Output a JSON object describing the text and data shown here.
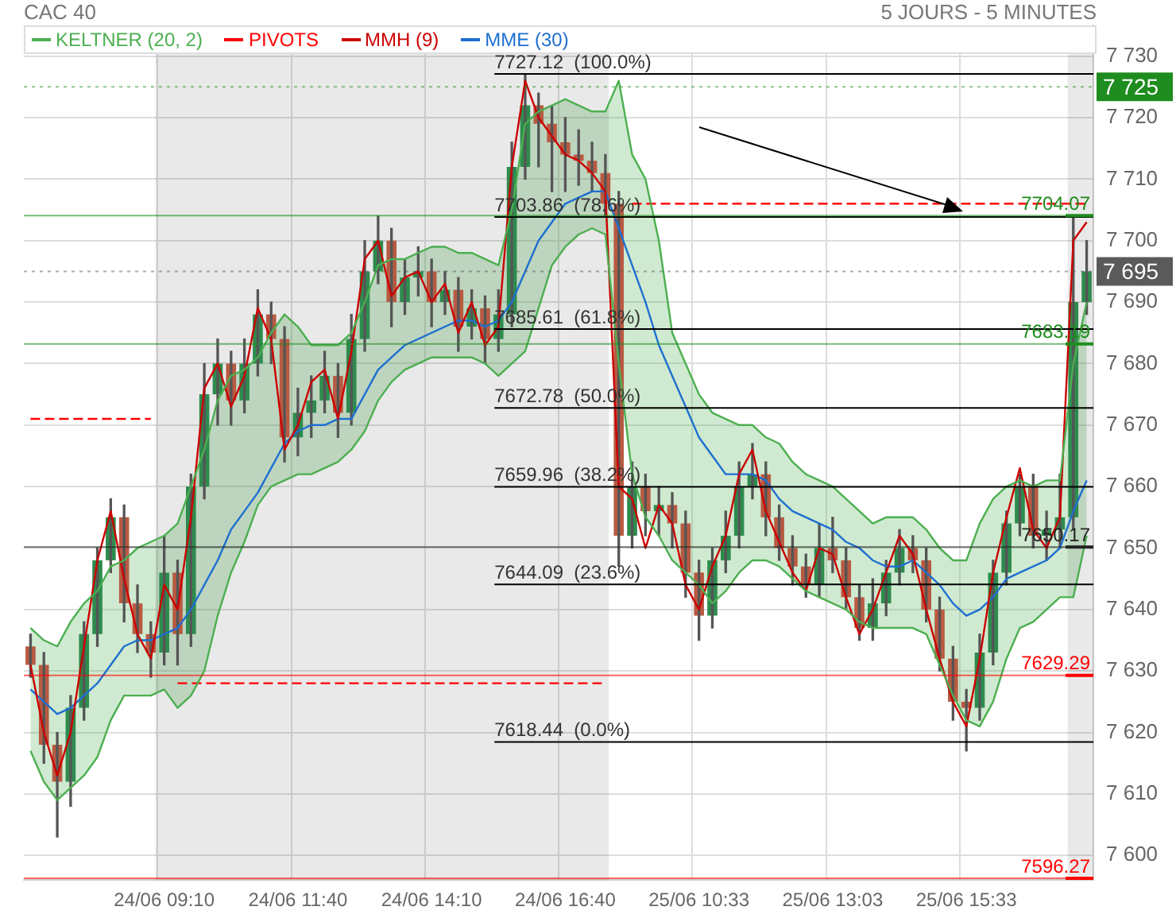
{
  "chart_data": {
    "type": "candlestick",
    "title": "CAC 40",
    "subtitle": "5 JOURS - 5 MINUTES",
    "categories": [
      null,
      null,
      null,
      null,
      null,
      null,
      null,
      null,
      null,
      null,
      "24/06 09:10",
      null,
      null,
      null,
      null,
      null,
      null,
      null,
      null,
      null,
      "24/06 11:40",
      null,
      null,
      null,
      null,
      null,
      null,
      null,
      null,
      null,
      "24/06 14:10",
      null,
      null,
      null,
      null,
      null,
      null,
      null,
      null,
      null,
      "24/06 16:40",
      null,
      null,
      null,
      null,
      null,
      null,
      null,
      null,
      null,
      "25/06 10:33",
      null,
      null,
      null,
      null,
      null,
      null,
      null,
      null,
      null,
      "25/06 13:03",
      null,
      null,
      null,
      null,
      null,
      null,
      null,
      null,
      null,
      "25/06 15:33",
      null,
      null,
      null,
      null,
      null,
      null,
      null,
      null,
      null
    ],
    "ohlc": [
      [
        7634,
        7636,
        7629,
        7631
      ],
      [
        7631,
        7633,
        7615,
        7618
      ],
      [
        7618,
        7620,
        7603,
        7612
      ],
      [
        7612,
        7626,
        7608,
        7624
      ],
      [
        7624,
        7638,
        7622,
        7636
      ],
      [
        7636,
        7650,
        7634,
        7648
      ],
      [
        7648,
        7658,
        7646,
        7655
      ],
      [
        7655,
        7657,
        7638,
        7641
      ],
      [
        7641,
        7644,
        7633,
        7636
      ],
      [
        7636,
        7638,
        7629,
        7633
      ],
      [
        7633,
        7652,
        7631,
        7646
      ],
      [
        7646,
        7648,
        7631,
        7636
      ],
      [
        7636,
        7662,
        7634,
        7660
      ],
      [
        7660,
        7680,
        7658,
        7675
      ],
      [
        7675,
        7684,
        7670,
        7680
      ],
      [
        7680,
        7682,
        7670,
        7674
      ],
      [
        7674,
        7684,
        7672,
        7680
      ],
      [
        7680,
        7692,
        7678,
        7688
      ],
      [
        7688,
        7690,
        7680,
        7684
      ],
      [
        7684,
        7686,
        7664,
        7668
      ],
      [
        7668,
        7676,
        7665,
        7672
      ],
      [
        7672,
        7678,
        7668,
        7674
      ],
      [
        7674,
        7682,
        7672,
        7678
      ],
      [
        7678,
        7680,
        7668,
        7672
      ],
      [
        7672,
        7688,
        7670,
        7684
      ],
      [
        7684,
        7700,
        7682,
        7695
      ],
      [
        7695,
        7704,
        7693,
        7700
      ],
      [
        7700,
        7702,
        7686,
        7690
      ],
      [
        7690,
        7697,
        7688,
        7694
      ],
      [
        7694,
        7699,
        7691,
        7695
      ],
      [
        7695,
        7697,
        7686,
        7690
      ],
      [
        7690,
        7695,
        7688,
        7692
      ],
      [
        7692,
        7694,
        7682,
        7686
      ],
      [
        7686,
        7692,
        7684,
        7689
      ],
      [
        7689,
        7691,
        7680,
        7684
      ],
      [
        7684,
        7692,
        7682,
        7688
      ],
      [
        7688,
        7716,
        7686,
        7712
      ],
      [
        7712,
        7727,
        7710,
        7722
      ],
      [
        7722,
        7724,
        7712,
        7719
      ],
      [
        7719,
        7722,
        7708,
        7716
      ],
      [
        7716,
        7720,
        7708,
        7714
      ],
      [
        7714,
        7718,
        7709,
        7713
      ],
      [
        7713,
        7716,
        7708,
        7711
      ],
      [
        7711,
        7714,
        7704,
        7706
      ],
      [
        7706,
        7708,
        7647,
        7652
      ],
      [
        7652,
        7664,
        7650,
        7660
      ],
      [
        7660,
        7662,
        7652,
        7656
      ],
      [
        7656,
        7660,
        7652,
        7657
      ],
      [
        7657,
        7659,
        7650,
        7654
      ],
      [
        7654,
        7656,
        7642,
        7646
      ],
      [
        7646,
        7648,
        7635,
        7639
      ],
      [
        7639,
        7650,
        7637,
        7648
      ],
      [
        7648,
        7656,
        7646,
        7652
      ],
      [
        7652,
        7664,
        7650,
        7660
      ],
      [
        7660,
        7667,
        7658,
        7662
      ],
      [
        7662,
        7664,
        7652,
        7655
      ],
      [
        7655,
        7657,
        7648,
        7650
      ],
      [
        7650,
        7652,
        7644,
        7647
      ],
      [
        7647,
        7649,
        7642,
        7644
      ],
      [
        7644,
        7654,
        7642,
        7650
      ],
      [
        7650,
        7655,
        7646,
        7648
      ],
      [
        7648,
        7650,
        7640,
        7642
      ],
      [
        7642,
        7644,
        7635,
        7637
      ],
      [
        7637,
        7645,
        7635,
        7641
      ],
      [
        7641,
        7648,
        7639,
        7646
      ],
      [
        7646,
        7653,
        7644,
        7650
      ],
      [
        7650,
        7652,
        7646,
        7648
      ],
      [
        7648,
        7650,
        7638,
        7640
      ],
      [
        7640,
        7642,
        7630,
        7632
      ],
      [
        7632,
        7634,
        7622,
        7625
      ],
      [
        7625,
        7627,
        7617,
        7624
      ],
      [
        7624,
        7636,
        7622,
        7633
      ],
      [
        7633,
        7648,
        7631,
        7646
      ],
      [
        7646,
        7656,
        7644,
        7654
      ],
      [
        7654,
        7662,
        7652,
        7660
      ],
      [
        7660,
        7662,
        7650,
        7652
      ],
      [
        7652,
        7656,
        7648,
        7653
      ],
      [
        7653,
        7662,
        7650,
        7655
      ],
      [
        7655,
        7704,
        7653,
        7690
      ],
      [
        7690,
        7700,
        7688,
        7695
      ]
    ],
    "series": [
      {
        "name": "KELTNER (20, 2)",
        "type": "area",
        "color": "#4caf50",
        "values": [
          7637,
          7635,
          7634,
          7638,
          7641,
          7643,
          7647,
          7648,
          7650,
          7651,
          7652,
          7654,
          7660,
          7666,
          7674,
          7678,
          7679,
          7681,
          7685,
          7688,
          7686,
          7683,
          7683,
          7683,
          7685,
          7690,
          7696,
          7697,
          7697,
          7698,
          7699,
          7699,
          7698,
          7698,
          7697,
          7696,
          7705,
          7719,
          7721,
          7722,
          7723,
          7722,
          7721,
          7721,
          7726,
          7714,
          7710,
          7700,
          7685,
          7680,
          7675,
          7672,
          7671,
          7670,
          7670,
          7668,
          7667,
          7664,
          7662,
          7661,
          7660,
          7658,
          7656,
          7654,
          7655,
          7655,
          7655,
          7653,
          7650,
          7648,
          7648,
          7654,
          7658,
          7660,
          7661,
          7660,
          7661,
          7661,
          7680,
          7690
        ]
      },
      {
        "type": "line",
        "color": "#4caf50",
        "values": [
          7617,
          7612,
          7609,
          7611,
          7613,
          7616,
          7622,
          7626,
          7626,
          7626,
          7627,
          7624,
          7626,
          7630,
          7639,
          7646,
          7651,
          7657,
          7660,
          7661,
          7662,
          7662,
          7663,
          7664,
          7666,
          7669,
          7674,
          7677,
          7679,
          7680,
          7681,
          7681,
          7681,
          7681,
          7680,
          7678,
          7680,
          7682,
          7689,
          7696,
          7699,
          7701,
          7702,
          7701,
          7680,
          7662,
          7655,
          7652,
          7648,
          7646,
          7644,
          7641,
          7643,
          7646,
          7648,
          7648,
          7647,
          7645,
          7643,
          7642,
          7641,
          7640,
          7638,
          7637,
          7637,
          7637,
          7637,
          7636,
          7631,
          7626,
          7622,
          7621,
          7625,
          7632,
          7637,
          7638,
          7640,
          7642,
          7642,
          7652
        ]
      },
      {
        "name": "PIVOTS",
        "type": "line",
        "color": "#ff0000",
        "line_style": "dashed",
        "values": [
          7671,
          7671,
          7671,
          7671,
          7671,
          7671,
          7671,
          7671,
          7671,
          7671,
          null,
          7628,
          7628,
          7628,
          7628,
          7628,
          7628,
          7628,
          7628,
          7628,
          7628,
          7628,
          7628,
          7628,
          7628,
          7628,
          7628,
          7628,
          7628,
          7628,
          7628,
          7628,
          7628,
          7628,
          7628,
          7628,
          7628,
          7628,
          7628,
          7628,
          7628,
          7628,
          7628,
          7628,
          null,
          7706,
          7706,
          7706,
          7706,
          7706,
          7706,
          7706,
          7706,
          7706,
          7706,
          7706,
          7706,
          7706,
          7706,
          7706,
          7706,
          7706,
          7706,
          7706,
          7706,
          7706,
          7706,
          7706,
          7706,
          7706,
          7706,
          7706,
          7706,
          7706,
          7706,
          7706,
          7706,
          7706,
          7706,
          7706
        ]
      },
      {
        "name": "MMH (9)",
        "type": "line",
        "color": "#cc0000",
        "values": [
          7631,
          7620,
          7613,
          7620,
          7634,
          7648,
          7656,
          7645,
          7636,
          7632,
          7644,
          7640,
          7655,
          7676,
          7680,
          7673,
          7678,
          7689,
          7684,
          7666,
          7670,
          7677,
          7679,
          7671,
          7682,
          7697,
          7700,
          7691,
          7694,
          7695,
          7690,
          7693,
          7685,
          7690,
          7683,
          7686,
          7712,
          7726,
          7720,
          7717,
          7714,
          7713,
          7711,
          7708,
          7660,
          7658,
          7650,
          7657,
          7654,
          7644,
          7640,
          7647,
          7652,
          7662,
          7666,
          7656,
          7651,
          7646,
          7643,
          7650,
          7649,
          7642,
          7636,
          7640,
          7646,
          7652,
          7649,
          7640,
          7632,
          7625,
          7621,
          7632,
          7646,
          7655,
          7663,
          7653,
          7650,
          7655,
          7700,
          7703
        ]
      },
      {
        "name": "MME (30)",
        "type": "line",
        "color": "#1e6fd0",
        "values": [
          7627,
          7625,
          7623,
          7624,
          7626,
          7628,
          7631,
          7634,
          7635,
          7635,
          7636,
          7637,
          7640,
          7644,
          7648,
          7653,
          7656,
          7659,
          7663,
          7667,
          7669,
          7670,
          7670,
          7671,
          7671,
          7675,
          7679,
          7681,
          7683,
          7684,
          7685,
          7686,
          7687,
          7687,
          7686,
          7687,
          7690,
          7695,
          7700,
          7703,
          7706,
          7707,
          7708,
          7708,
          7702,
          7696,
          7690,
          7683,
          7678,
          7673,
          7668,
          7665,
          7662,
          7662,
          7662,
          7661,
          7658,
          7656,
          7655,
          7654,
          7653,
          7651,
          7650,
          7648,
          7647,
          7647,
          7648,
          7646,
          7644,
          7641,
          7639,
          7640,
          7642,
          7645,
          7646,
          7647,
          7648,
          7650,
          7656,
          7661
        ]
      }
    ],
    "ylim": [
      7596,
      7735
    ],
    "yticks": [
      {
        "value": 7600,
        "label": "7 600"
      },
      {
        "value": 7610,
        "label": "7 610"
      },
      {
        "value": 7620,
        "label": "7 620"
      },
      {
        "value": 7630,
        "label": "7 630"
      },
      {
        "value": 7640,
        "label": "7 640"
      },
      {
        "value": 7650,
        "label": "7 650"
      },
      {
        "value": 7660,
        "label": "7 660"
      },
      {
        "value": 7670,
        "label": "7 670"
      },
      {
        "value": 7680,
        "label": "7 680"
      },
      {
        "value": 7690,
        "label": "7 690"
      },
      {
        "value": 7700,
        "label": "7 700"
      },
      {
        "value": 7710,
        "label": "7 710"
      },
      {
        "value": 7720,
        "label": "7 720"
      },
      {
        "value": 7730,
        "label": "7 730"
      }
    ],
    "ref_lines": [
      {
        "axis": "y",
        "value": 7727.12,
        "label": "7727.12  (100.0%)",
        "color": "#000000"
      },
      {
        "axis": "y",
        "value": 7703.86,
        "label": "7703.86  (78.6%)",
        "color": "#000000"
      },
      {
        "axis": "y",
        "value": 7685.61,
        "label": "7685.61  (61.8%)",
        "color": "#000000"
      },
      {
        "axis": "y",
        "value": 7672.78,
        "label": "7672.78  (50.0%)",
        "color": "#000000"
      },
      {
        "axis": "y",
        "value": 7659.96,
        "label": "7659.96  (38.2%)",
        "color": "#000000"
      },
      {
        "axis": "y",
        "value": 7644.09,
        "label": "7644.09  (23.6%)",
        "color": "#000000"
      },
      {
        "axis": "y",
        "value": 7618.44,
        "label": "7618.44  (0.0%)",
        "color": "#000000"
      },
      {
        "axis": "y",
        "value": 7704.07,
        "label": "7704.07",
        "color": "#1e8c1e",
        "line_style": "solid"
      },
      {
        "axis": "y",
        "value": 7683.19,
        "label": "7683.19",
        "color": "#1e8c1e",
        "line_style": "solid"
      },
      {
        "axis": "y",
        "value": 7650.17,
        "label": "7650.17",
        "color": "#222222",
        "line_style": "solid"
      },
      {
        "axis": "y",
        "value": 7629.29,
        "label": "7629.29",
        "color": "#ff0000",
        "line_style": "solid"
      },
      {
        "axis": "y",
        "value": 7596.27,
        "label": "7596.27",
        "color": "#ff0000",
        "line_style": "solid"
      },
      {
        "axis": "y",
        "value": 7725,
        "label": "7 725",
        "color": "#1e8c1e",
        "line_style": "dotted"
      },
      {
        "axis": "y",
        "value": 7695,
        "label": "7 695",
        "color": "#5a5a5a",
        "line_style": "dotted"
      }
    ],
    "grid": true,
    "legend": "top left"
  }
}
